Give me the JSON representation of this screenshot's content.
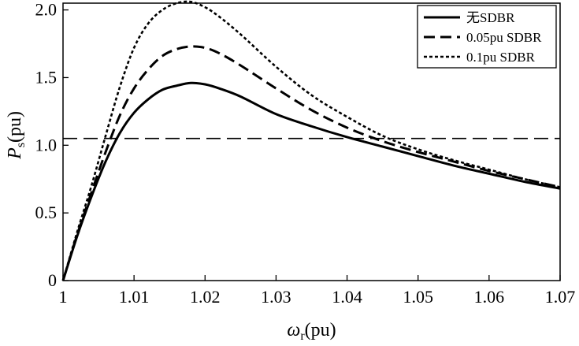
{
  "chart_data": {
    "type": "line",
    "xlabel": "ωr(pu)",
    "ylabel": "Ps (pu)",
    "xlabel_main": "ω",
    "xlabel_sub": "r",
    "xlabel_unit": "(pu)",
    "ylabel_main": "P",
    "ylabel_sub": "s",
    "ylabel_unit": "(pu)",
    "xlim": [
      1.0,
      1.07
    ],
    "ylim": [
      0,
      2.05
    ],
    "x_ticks": [
      1.0,
      1.01,
      1.02,
      1.03,
      1.04,
      1.05,
      1.06,
      1.07
    ],
    "x_tick_labels": [
      "1",
      "1.01",
      "1.02",
      "1.03",
      "1.04",
      "1.05",
      "1.06",
      "1.07"
    ],
    "y_ticks": [
      0,
      0.5,
      1.0,
      1.5,
      2.0
    ],
    "y_tick_labels": [
      "0",
      "0.5",
      "1.0",
      "1.5",
      "2.0"
    ],
    "legend_position": "top-right",
    "grid": false,
    "reference_line": {
      "y": 1.05,
      "style": "dashed"
    },
    "series": [
      {
        "name": "无SDBR",
        "style": "solid",
        "x": [
          1.0,
          1.002,
          1.004,
          1.006,
          1.008,
          1.01,
          1.012,
          1.014,
          1.016,
          1.018,
          1.02,
          1.022,
          1.025,
          1.03,
          1.035,
          1.04,
          1.045,
          1.05,
          1.055,
          1.06,
          1.065,
          1.07
        ],
        "y": [
          0.0,
          0.33,
          0.62,
          0.88,
          1.09,
          1.24,
          1.34,
          1.41,
          1.44,
          1.46,
          1.45,
          1.42,
          1.36,
          1.23,
          1.14,
          1.06,
          0.99,
          0.92,
          0.85,
          0.79,
          0.73,
          0.68
        ]
      },
      {
        "name": "0.05pu SDBR",
        "style": "dashed",
        "x": [
          1.0,
          1.002,
          1.004,
          1.006,
          1.008,
          1.01,
          1.012,
          1.014,
          1.016,
          1.018,
          1.02,
          1.022,
          1.025,
          1.03,
          1.035,
          1.04,
          1.045,
          1.05,
          1.055,
          1.06,
          1.065,
          1.07
        ],
        "y": [
          0.0,
          0.34,
          0.65,
          0.95,
          1.22,
          1.42,
          1.56,
          1.66,
          1.71,
          1.73,
          1.72,
          1.68,
          1.59,
          1.42,
          1.26,
          1.13,
          1.03,
          0.95,
          0.88,
          0.81,
          0.75,
          0.69
        ]
      },
      {
        "name": "0.1pu SDBR",
        "style": "dotted",
        "x": [
          1.0,
          1.002,
          1.004,
          1.006,
          1.008,
          1.01,
          1.012,
          1.014,
          1.016,
          1.018,
          1.02,
          1.022,
          1.025,
          1.03,
          1.035,
          1.04,
          1.045,
          1.05,
          1.055,
          1.06,
          1.065,
          1.07
        ],
        "y": [
          0.0,
          0.36,
          0.7,
          1.07,
          1.43,
          1.72,
          1.9,
          2.0,
          2.05,
          2.06,
          2.02,
          1.95,
          1.82,
          1.58,
          1.37,
          1.21,
          1.07,
          0.97,
          0.89,
          0.82,
          0.75,
          0.69
        ]
      }
    ]
  }
}
